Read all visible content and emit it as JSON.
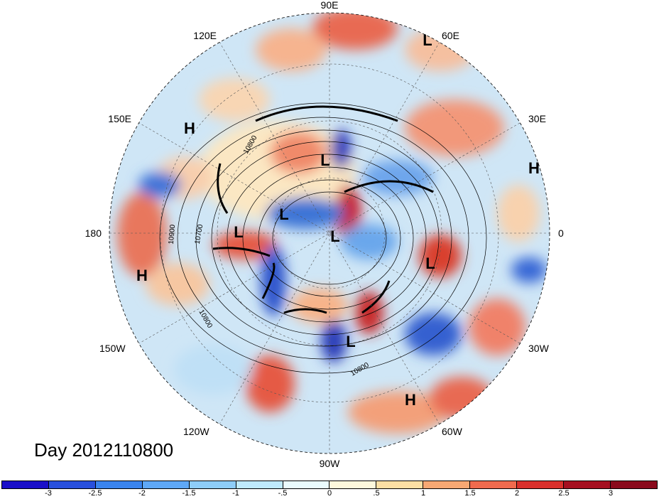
{
  "map": {
    "projection": "north-polar-stereographic",
    "longitude_labels": [
      "90E",
      "60E",
      "30E",
      "0",
      "30W",
      "60W",
      "90W",
      "120W",
      "150W",
      "180",
      "150E",
      "120E"
    ],
    "highs_lows": [
      {
        "text": "L",
        "place": "north Siberia"
      },
      {
        "text": "L",
        "place": "Arctic Ocean"
      },
      {
        "text": "L",
        "place": "Chukchi Sea"
      },
      {
        "text": "L",
        "place": "east Siberia"
      },
      {
        "text": "L",
        "place": "Beaufort Sea"
      },
      {
        "text": "L",
        "place": "Nordic Seas"
      },
      {
        "text": "L",
        "place": "eastern North America"
      },
      {
        "text": "H",
        "place": "western Pacific"
      },
      {
        "text": "H",
        "place": "central Pacific"
      },
      {
        "text": "H",
        "place": "Africa"
      },
      {
        "text": "H",
        "place": "tropical Atlantic"
      }
    ],
    "contour_labels": [
      "10900",
      "10700",
      "10800",
      "10800",
      "10800"
    ]
  },
  "date_label": "Day 2012110800",
  "colorbar": {
    "ticks": [
      "-3",
      "-2.5",
      "-2",
      "-1.5",
      "-1",
      "-.5",
      "0",
      ".5",
      "1",
      "1.5",
      "2",
      "2.5",
      "3"
    ],
    "colors": [
      "#1a0fc8",
      "#2950dc",
      "#3a84ee",
      "#5fa8f6",
      "#8ecdf8",
      "#bfeafc",
      "#eafbfd",
      "#fdf8dc",
      "#fcdfa4",
      "#f7a873",
      "#f06a4e",
      "#d9302c",
      "#a50f20",
      "#8a0a1c"
    ]
  }
}
